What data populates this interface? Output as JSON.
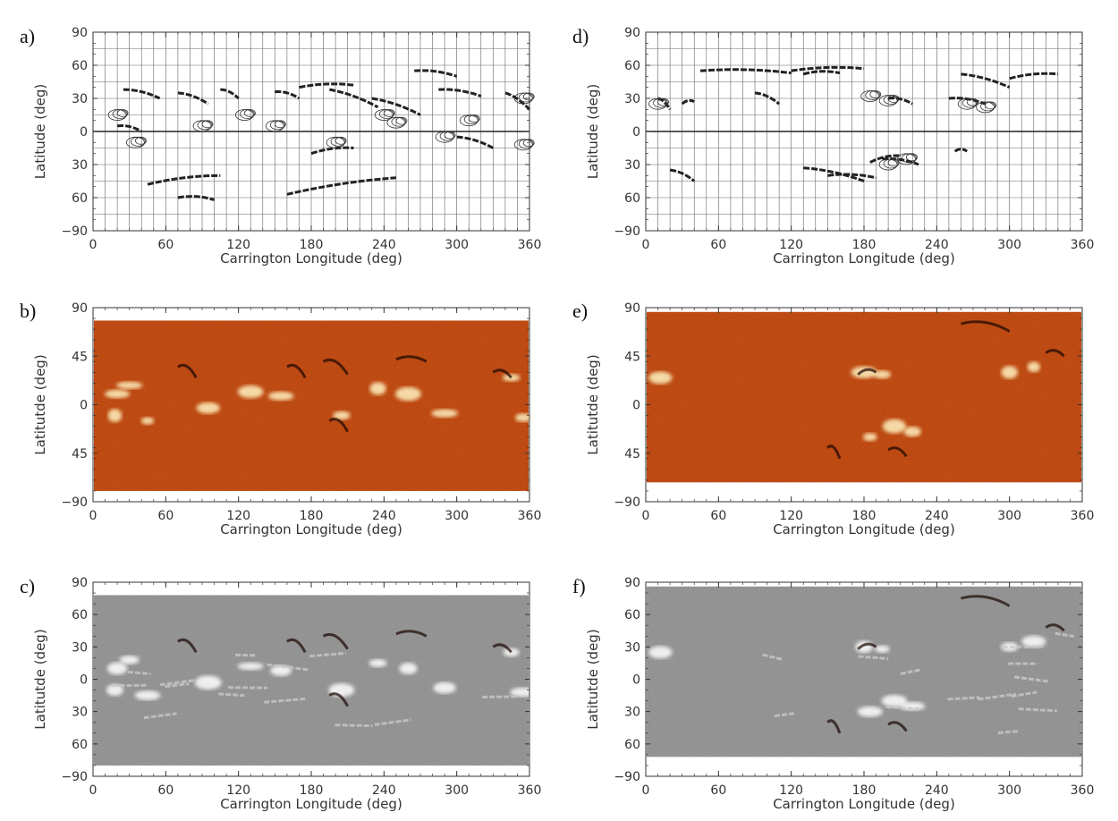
{
  "figure": {
    "panels": [
      {
        "letter": "a)",
        "type": "line-drawing",
        "xlabel": "Carrington Longitude (deg)",
        "ylabel": "Latitude (deg)",
        "yticks": [
          "90",
          "60",
          "30",
          "0",
          "30",
          "60",
          "−90"
        ],
        "xticks": [
          "0",
          "60",
          "120",
          "180",
          "240",
          "300",
          "360"
        ]
      },
      {
        "letter": "b)",
        "type": "color-map",
        "colormap": "red-orange",
        "xlabel": "Carrington Longitude (deg)",
        "ylabel": "Latitutde (deg)",
        "yticks": [
          "90",
          "45",
          "0",
          "45",
          "−90"
        ],
        "xticks": [
          "0",
          "60",
          "120",
          "180",
          "240",
          "300",
          "360"
        ]
      },
      {
        "letter": "c)",
        "type": "grayscale-overlay",
        "xlabel": "Carrington Longitude (deg)",
        "ylabel": "Latitutde (deg)",
        "yticks": [
          "90",
          "60",
          "30",
          "0",
          "30",
          "60",
          "−90"
        ],
        "xticks": [
          "0",
          "60",
          "120",
          "180",
          "240",
          "300",
          "360"
        ]
      },
      {
        "letter": "d)",
        "type": "line-drawing",
        "xlabel": "Carrington Longitude (deg)",
        "ylabel": "Latitude (deg)",
        "yticks": [
          "90",
          "60",
          "30",
          "0",
          "30",
          "60",
          "−90"
        ],
        "xticks": [
          "0",
          "60",
          "120",
          "180",
          "240",
          "300",
          "360"
        ]
      },
      {
        "letter": "e)",
        "type": "color-map",
        "colormap": "red-orange",
        "xlabel": "Carrington Longitude (deg)",
        "ylabel": "Latitutde (deg)",
        "yticks": [
          "90",
          "45",
          "0",
          "45",
          "−90"
        ],
        "xticks": [
          "0",
          "60",
          "120",
          "180",
          "240",
          "300",
          "360"
        ]
      },
      {
        "letter": "f)",
        "type": "grayscale-overlay",
        "xlabel": "Carrington Longitude (deg)",
        "ylabel": "Latitutde (deg)",
        "yticks": [
          "90",
          "60",
          "30",
          "0",
          "30",
          "60",
          "−90"
        ],
        "xticks": [
          "0",
          "60",
          "120",
          "180",
          "240",
          "300",
          "360"
        ]
      }
    ]
  },
  "colors": {
    "red_map_bg": "#b53a0c",
    "red_map_hot": "#fff2c0",
    "gray_map_bg": "#8a8a8a",
    "axis": "#333333",
    "drawing_line": "#222222"
  }
}
